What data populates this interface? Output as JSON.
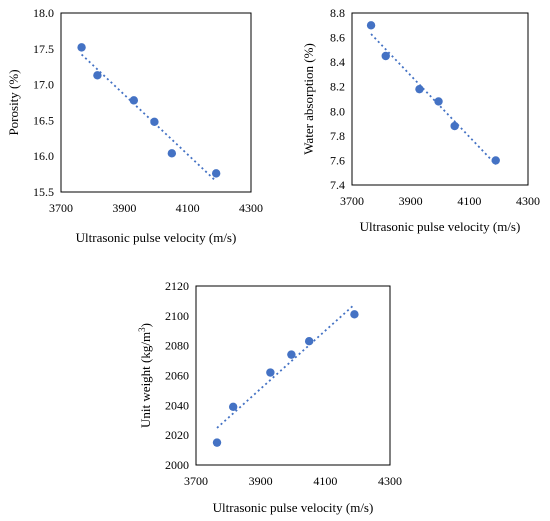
{
  "chart_data": [
    {
      "id": "porosity",
      "type": "scatter",
      "title": "",
      "xlabel": "Ultrasonic pulse velocity (m/s)",
      "ylabel": "Porosity (%)",
      "xlim": [
        3700,
        4300
      ],
      "ylim": [
        15.5,
        18.0
      ],
      "xticks": [
        "3700",
        "3900",
        "4100",
        "4300"
      ],
      "yticks": [
        "15.5",
        "16.0",
        "16.5",
        "17.0",
        "17.5",
        "18.0"
      ],
      "grid": false,
      "legend": "none",
      "marker_color": "#4472C4",
      "trendline": {
        "style": "dotted linear",
        "color": "#4472C4"
      },
      "points": [
        {
          "x": 3765,
          "y": 17.52
        },
        {
          "x": 3815,
          "y": 17.13
        },
        {
          "x": 3930,
          "y": 16.78
        },
        {
          "x": 3995,
          "y": 16.48
        },
        {
          "x": 4050,
          "y": 16.04
        },
        {
          "x": 4190,
          "y": 15.76
        }
      ]
    },
    {
      "id": "water-absorption",
      "type": "scatter",
      "title": "",
      "xlabel": "Ultrasonic pulse velocity (m/s)",
      "ylabel": "Water absorption (%)",
      "xlim": [
        3700,
        4300
      ],
      "ylim": [
        7.4,
        8.8
      ],
      "xticks": [
        "3700",
        "3900",
        "4100",
        "4300"
      ],
      "yticks": [
        "7.4",
        "7.6",
        "7.8",
        "8.0",
        "8.2",
        "8.4",
        "8.6",
        "8.8"
      ],
      "grid": false,
      "legend": "none",
      "marker_color": "#4472C4",
      "trendline": {
        "style": "dotted linear",
        "color": "#4472C4"
      },
      "points": [
        {
          "x": 3765,
          "y": 8.7
        },
        {
          "x": 3815,
          "y": 8.45
        },
        {
          "x": 3930,
          "y": 8.18
        },
        {
          "x": 3995,
          "y": 8.08
        },
        {
          "x": 4050,
          "y": 7.88
        },
        {
          "x": 4190,
          "y": 7.6
        }
      ]
    },
    {
      "id": "unit-weight",
      "type": "scatter",
      "title": "",
      "xlabel": "Ultrasonic pulse velocity (m/s)",
      "ylabel": "Unit weight (kg/m",
      "ylabel_sup": "3",
      "ylabel_end": ")",
      "xlim": [
        3700,
        4300
      ],
      "ylim": [
        2000,
        2120
      ],
      "xticks": [
        "3700",
        "3900",
        "4100",
        "4300"
      ],
      "yticks": [
        "2000",
        "2020",
        "2040",
        "2060",
        "2080",
        "2100",
        "2120"
      ],
      "grid": false,
      "legend": "none",
      "marker_color": "#4472C4",
      "trendline": {
        "style": "dotted linear",
        "color": "#4472C4"
      },
      "points": [
        {
          "x": 3765,
          "y": 2015
        },
        {
          "x": 3815,
          "y": 2039
        },
        {
          "x": 3930,
          "y": 2062
        },
        {
          "x": 3995,
          "y": 2074
        },
        {
          "x": 4050,
          "y": 2083
        },
        {
          "x": 4190,
          "y": 2101
        }
      ]
    }
  ]
}
